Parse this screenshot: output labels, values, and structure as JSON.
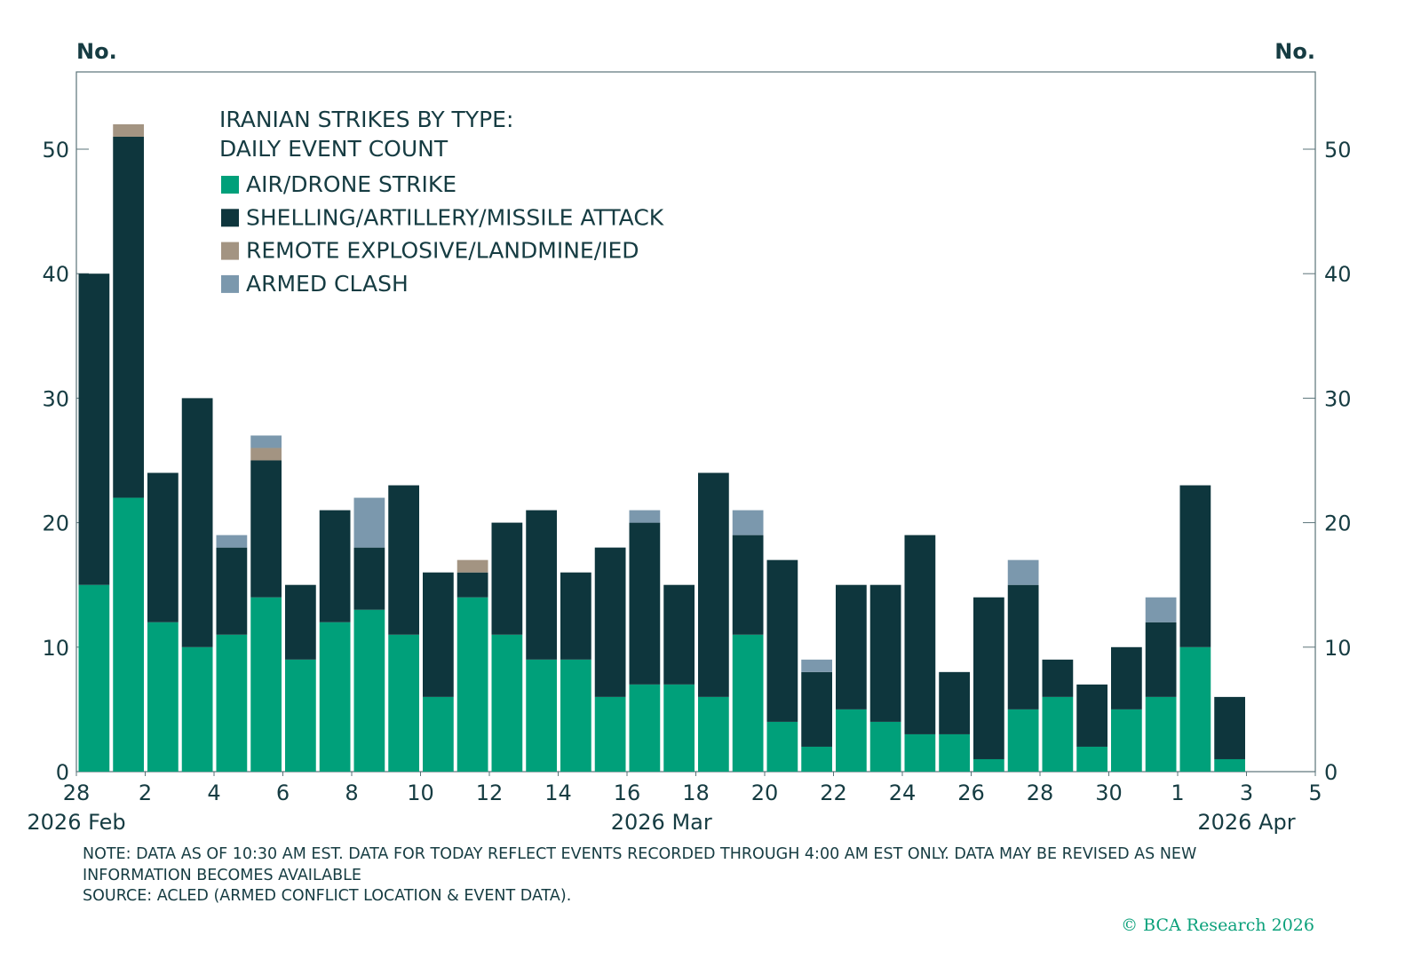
{
  "chart_data": {
    "type": "bar",
    "stacked": true,
    "title": "IRANIAN STRIKES BY TYPE: DAILY EVENT COUNT",
    "title_lines": [
      "IRANIAN STRIKES BY TYPE:",
      "DAILY EVENT COUNT"
    ],
    "ylabel_left": "No.",
    "ylabel_right": "No.",
    "ylim": [
      0,
      56
    ],
    "yticks": [
      0,
      10,
      20,
      30,
      40,
      50
    ],
    "xlim": [
      "2026-02-28",
      "2026-04-05"
    ],
    "xticks": [
      {
        "date": "2026-02-28",
        "label": "28"
      },
      {
        "date": "2026-03-02",
        "label": "2"
      },
      {
        "date": "2026-03-04",
        "label": "4"
      },
      {
        "date": "2026-03-06",
        "label": "6"
      },
      {
        "date": "2026-03-08",
        "label": "8"
      },
      {
        "date": "2026-03-10",
        "label": "10"
      },
      {
        "date": "2026-03-12",
        "label": "12"
      },
      {
        "date": "2026-03-14",
        "label": "14"
      },
      {
        "date": "2026-03-16",
        "label": "16"
      },
      {
        "date": "2026-03-18",
        "label": "18"
      },
      {
        "date": "2026-03-20",
        "label": "20"
      },
      {
        "date": "2026-03-22",
        "label": "22"
      },
      {
        "date": "2026-03-24",
        "label": "24"
      },
      {
        "date": "2026-03-26",
        "label": "26"
      },
      {
        "date": "2026-03-28",
        "label": "28"
      },
      {
        "date": "2026-03-30",
        "label": "30"
      },
      {
        "date": "2026-04-01",
        "label": "1"
      },
      {
        "date": "2026-04-03",
        "label": "3"
      },
      {
        "date": "2026-04-05",
        "label": "5"
      }
    ],
    "month_labels": [
      {
        "date": "2026-02-28",
        "label": "2026 Feb"
      },
      {
        "date": "2026-03-17",
        "label": "2026 Mar"
      },
      {
        "date": "2026-04-03",
        "label": "2026 Apr"
      }
    ],
    "start_date": "2026-02-28",
    "legend_position": "top-left",
    "grid": false,
    "series": [
      {
        "name": "AIR/DRONE STRIKE",
        "color": "#00a07a",
        "values": [
          15,
          22,
          12,
          10,
          11,
          14,
          9,
          12,
          13,
          11,
          6,
          14,
          11,
          9,
          9,
          6,
          7,
          7,
          6,
          11,
          4,
          2,
          5,
          4,
          3,
          3,
          1,
          5,
          6,
          2,
          5,
          6,
          10,
          1
        ]
      },
      {
        "name": "SHELLING/ARTILLERY/MISSILE ATTACK",
        "color": "#0e363d",
        "values": [
          25,
          29,
          12,
          20,
          7,
          11,
          6,
          9,
          5,
          12,
          10,
          2,
          9,
          12,
          7,
          12,
          13,
          8,
          18,
          8,
          13,
          6,
          10,
          11,
          16,
          5,
          13,
          10,
          3,
          5,
          5,
          6,
          13,
          5
        ]
      },
      {
        "name": "REMOTE EXPLOSIVE/LANDMINE/IED",
        "color": "#a39482",
        "values": [
          0,
          1,
          0,
          0,
          0,
          1,
          0,
          0,
          0,
          0,
          0,
          1,
          0,
          0,
          0,
          0,
          0,
          0,
          0,
          0,
          0,
          0,
          0,
          0,
          0,
          0,
          0,
          0,
          0,
          0,
          0,
          0,
          0,
          0
        ]
      },
      {
        "name": "ARMED CLASH",
        "color": "#7b98ad",
        "values": [
          0,
          0,
          0,
          0,
          1,
          1,
          0,
          0,
          4,
          0,
          0,
          0,
          0,
          0,
          0,
          0,
          1,
          0,
          0,
          2,
          0,
          1,
          0,
          0,
          0,
          0,
          0,
          2,
          0,
          0,
          0,
          2,
          0,
          0
        ]
      }
    ]
  },
  "footer": {
    "note": "NOTE: DATA AS OF 10:30 AM EST. DATA FOR TODAY REFLECT EVENTS RECORDED THROUGH 4:00 AM EST ONLY. DATA MAY BE REVISED AS NEW INFORMATION BECOMES AVAILABLE",
    "source": "SOURCE: ACLED (ARMED CONFLICT LOCATION & EVENT DATA).",
    "copyright": "© BCA Research 2026"
  }
}
